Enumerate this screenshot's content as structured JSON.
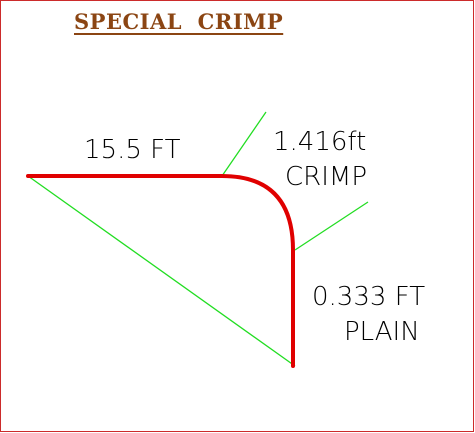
{
  "title": "SPECIAL  CRIMP",
  "labels": {
    "top_length": "15.5 FT",
    "crimp_length": "1.416ft",
    "crimp_word": "CRIMP",
    "plain_length": "0.333 FT",
    "plain_word": "PLAIN"
  },
  "colors": {
    "title": "#8b4513",
    "pipe": "#e00000",
    "leader_lines": "#22dd22",
    "frame": "#cc2b2b",
    "text": "#000000"
  }
}
